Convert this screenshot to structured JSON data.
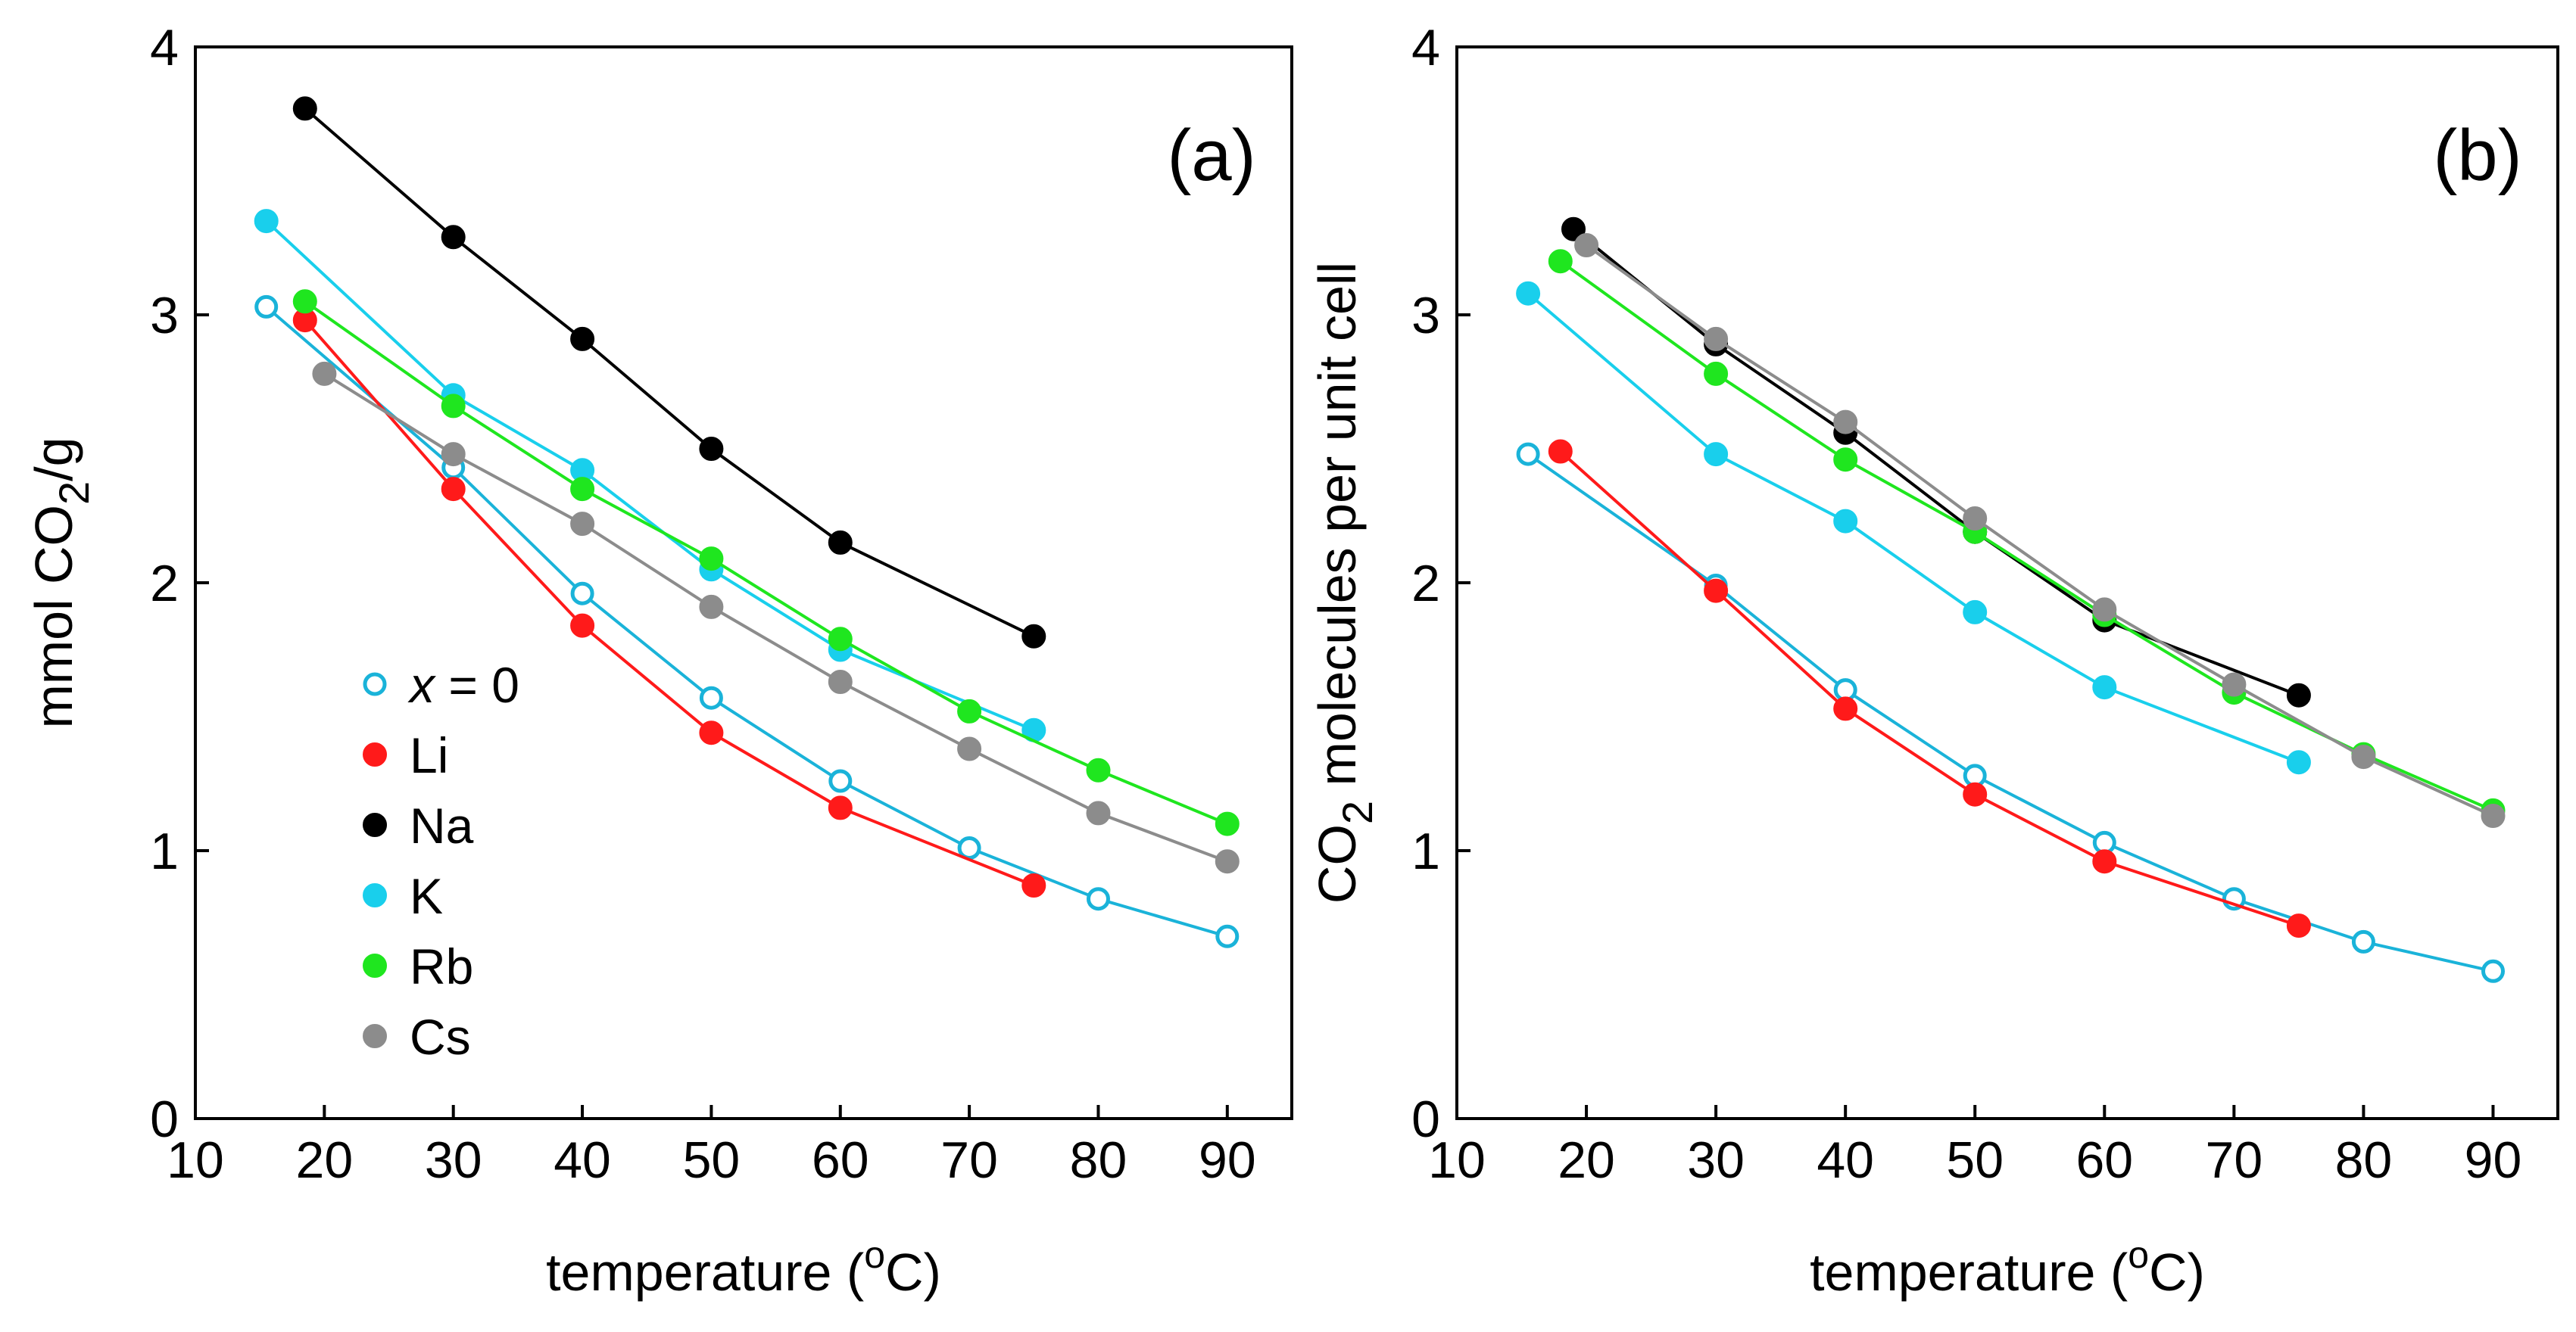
{
  "colors": {
    "x0": "#1ab3d9",
    "Li": "#ff1a1a",
    "Na": "#000000",
    "K": "#19cfec",
    "Rb": "#1fe61f",
    "Cs": "#8c8c8c",
    "axis": "#000000"
  },
  "chart_data": [
    {
      "type": "line",
      "panel_label": "(a)",
      "ylabel_parts": {
        "pre": "mmol CO",
        "sub": "2",
        "post": "/g"
      },
      "xlabel_parts": {
        "pre": "temperature (",
        "sup": "o",
        "post": "C)"
      },
      "xlim": [
        10,
        95
      ],
      "ylim": [
        0,
        4
      ],
      "xticks": [
        10,
        20,
        30,
        40,
        50,
        60,
        70,
        80,
        90
      ],
      "yticks": [
        0,
        1,
        2,
        3,
        4
      ],
      "grid": false,
      "legend": {
        "placement": "middle-left"
      },
      "series": [
        {
          "name": "x = 0",
          "key": "x0",
          "marker": "open-circle",
          "x": [
            15.5,
            30,
            40,
            50,
            60,
            70,
            80,
            90
          ],
          "y": [
            3.03,
            2.43,
            1.96,
            1.57,
            1.26,
            1.01,
            0.82,
            0.68
          ]
        },
        {
          "name": "Li",
          "key": "Li",
          "marker": "filled-circle",
          "x": [
            18.5,
            30,
            40,
            50,
            60,
            75
          ],
          "y": [
            2.98,
            2.35,
            1.84,
            1.44,
            1.16,
            0.87
          ]
        },
        {
          "name": "Na",
          "key": "Na",
          "marker": "filled-circle",
          "x": [
            18.5,
            30,
            40,
            50,
            60,
            75
          ],
          "y": [
            3.77,
            3.29,
            2.91,
            2.5,
            2.15,
            1.8
          ]
        },
        {
          "name": "K",
          "key": "K",
          "marker": "filled-circle",
          "x": [
            15.5,
            30,
            40,
            50,
            60,
            75
          ],
          "y": [
            3.35,
            2.7,
            2.42,
            2.05,
            1.75,
            1.45
          ]
        },
        {
          "name": "Rb",
          "key": "Rb",
          "marker": "filled-circle",
          "x": [
            18.5,
            30,
            40,
            50,
            60,
            70,
            80,
            90
          ],
          "y": [
            3.05,
            2.66,
            2.35,
            2.09,
            1.79,
            1.52,
            1.3,
            1.1
          ]
        },
        {
          "name": "Cs",
          "key": "Cs",
          "marker": "filled-circle",
          "x": [
            20,
            30,
            40,
            50,
            60,
            70,
            80,
            90
          ],
          "y": [
            2.78,
            2.48,
            2.22,
            1.91,
            1.63,
            1.38,
            1.14,
            0.96
          ]
        }
      ]
    },
    {
      "type": "line",
      "panel_label": "(b)",
      "ylabel_parts": {
        "pre": "CO",
        "sub": "2",
        "post": " molecules per unit cell"
      },
      "xlabel_parts": {
        "pre": "temperature (",
        "sup": "o",
        "post": "C)"
      },
      "xlim": [
        10,
        95
      ],
      "ylim": [
        0,
        4
      ],
      "xticks": [
        10,
        20,
        30,
        40,
        50,
        60,
        70,
        80,
        90
      ],
      "yticks": [
        0,
        1,
        2,
        3,
        4
      ],
      "grid": false,
      "series": [
        {
          "name": "x = 0",
          "key": "x0",
          "marker": "open-circle",
          "x": [
            15.5,
            30,
            40,
            50,
            60,
            70,
            80,
            90
          ],
          "y": [
            2.48,
            1.99,
            1.6,
            1.28,
            1.03,
            0.82,
            0.66,
            0.55
          ]
        },
        {
          "name": "Li",
          "key": "Li",
          "marker": "filled-circle",
          "x": [
            18,
            30,
            40,
            50,
            60,
            75
          ],
          "y": [
            2.49,
            1.97,
            1.53,
            1.21,
            0.96,
            0.72
          ]
        },
        {
          "name": "Na",
          "key": "Na",
          "marker": "filled-circle",
          "x": [
            19,
            30,
            40,
            50,
            60,
            75
          ],
          "y": [
            3.32,
            2.89,
            2.56,
            2.19,
            1.86,
            1.58
          ]
        },
        {
          "name": "K",
          "key": "K",
          "marker": "filled-circle",
          "x": [
            15.5,
            30,
            40,
            50,
            60,
            75
          ],
          "y": [
            3.08,
            2.48,
            2.23,
            1.89,
            1.61,
            1.33
          ]
        },
        {
          "name": "Rb",
          "key": "Rb",
          "marker": "filled-circle",
          "x": [
            18,
            30,
            40,
            50,
            60,
            70,
            80,
            90
          ],
          "y": [
            3.2,
            2.78,
            2.46,
            2.19,
            1.88,
            1.59,
            1.36,
            1.15
          ]
        },
        {
          "name": "Cs",
          "key": "Cs",
          "marker": "filled-circle",
          "x": [
            20,
            30,
            40,
            50,
            60,
            70,
            80,
            90
          ],
          "y": [
            3.26,
            2.91,
            2.6,
            2.24,
            1.9,
            1.62,
            1.35,
            1.13
          ]
        }
      ]
    }
  ]
}
